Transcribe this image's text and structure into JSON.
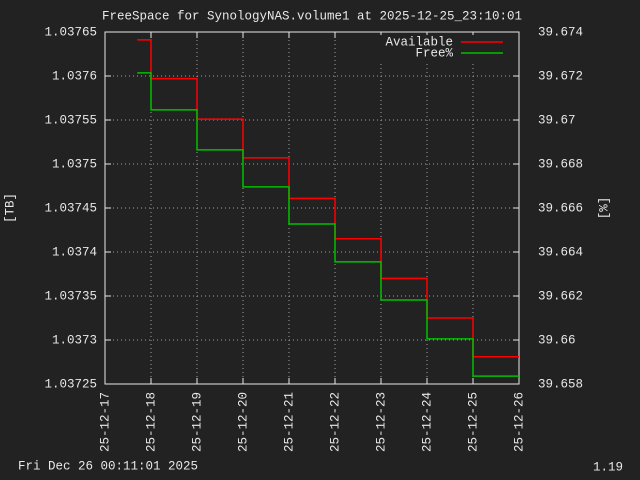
{
  "chart_data": {
    "type": "step",
    "title": "FreeSpace for SynologyNAS.volume1  at 2025-12-25_23:10:01",
    "ylabel": "[TB]",
    "y2label": "[%]",
    "footer_left": "Fri Dec 26 00:11:01 2025",
    "footer_right": "1.19",
    "x": [
      0.7,
      1,
      2,
      3,
      4,
      5,
      6,
      7,
      8
    ],
    "xlim": [
      0,
      9
    ],
    "xticks": [
      {
        "value": 0,
        "label": "25-12-17"
      },
      {
        "value": 1,
        "label": "25-12-18"
      },
      {
        "value": 2,
        "label": "25-12-19"
      },
      {
        "value": 3,
        "label": "25-12-20"
      },
      {
        "value": 4,
        "label": "25-12-21"
      },
      {
        "value": 5,
        "label": "25-12-22"
      },
      {
        "value": 6,
        "label": "25-12-23"
      },
      {
        "value": 7,
        "label": "25-12-24"
      },
      {
        "value": 8,
        "label": "25-12-25"
      },
      {
        "value": 9,
        "label": "25-12-26"
      }
    ],
    "ylim": [
      1.03725,
      1.03765
    ],
    "yticks": [
      1.03725,
      1.0373,
      1.03735,
      1.0374,
      1.03745,
      1.0375,
      1.03755,
      1.0376,
      1.03765
    ],
    "y2lim": [
      39.658,
      39.674
    ],
    "y2ticks": [
      39.658,
      39.66,
      39.662,
      39.664,
      39.666,
      39.668,
      39.67,
      39.672,
      39.674
    ],
    "grid": true,
    "legend": "top-right",
    "series": [
      {
        "name": "Available",
        "color": "#ff0000",
        "values": [
          1.037641,
          1.037597,
          1.037551,
          1.037507,
          1.037461,
          1.037415,
          1.03737,
          1.037325,
          1.037281
        ]
      },
      {
        "name": "Free%",
        "color": "#00c000",
        "axis": "y2",
        "values": [
          39.67214,
          39.67046,
          39.66864,
          39.66696,
          39.66527,
          39.66355,
          39.66182,
          39.66005,
          39.65836
        ]
      }
    ]
  }
}
